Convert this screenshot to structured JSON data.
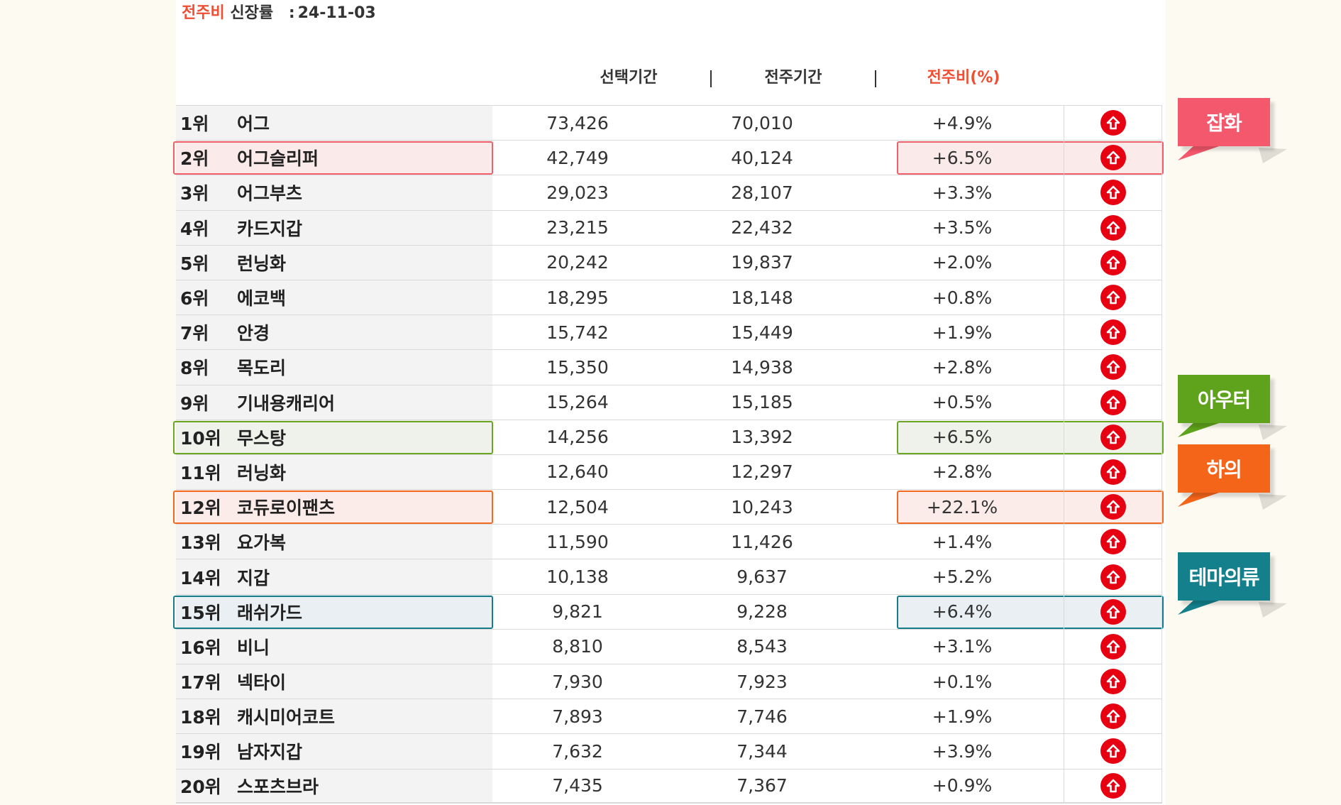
{
  "heading": {
    "highlight": "전주비",
    "label": "신장률",
    "separator": ":",
    "date": "24-11-03"
  },
  "columns": {
    "selected": "선택기간",
    "previous": "전주기간",
    "change": "전주비(%)"
  },
  "rows": [
    {
      "rank": "1위",
      "keyword": "어그",
      "selected": "73,426",
      "previous": "70,010",
      "change": "+4.9%",
      "trend": "up"
    },
    {
      "rank": "2위",
      "keyword": "어그슬리퍼",
      "selected": "42,749",
      "previous": "40,124",
      "change": "+6.5%",
      "trend": "up",
      "highlight": "잡화"
    },
    {
      "rank": "3위",
      "keyword": "어그부츠",
      "selected": "29,023",
      "previous": "28,107",
      "change": "+3.3%",
      "trend": "up"
    },
    {
      "rank": "4위",
      "keyword": "카드지갑",
      "selected": "23,215",
      "previous": "22,432",
      "change": "+3.5%",
      "trend": "up"
    },
    {
      "rank": "5위",
      "keyword": "런닝화",
      "selected": "20,242",
      "previous": "19,837",
      "change": "+2.0%",
      "trend": "up"
    },
    {
      "rank": "6위",
      "keyword": "에코백",
      "selected": "18,295",
      "previous": "18,148",
      "change": "+0.8%",
      "trend": "up"
    },
    {
      "rank": "7위",
      "keyword": "안경",
      "selected": "15,742",
      "previous": "15,449",
      "change": "+1.9%",
      "trend": "up"
    },
    {
      "rank": "8위",
      "keyword": "목도리",
      "selected": "15,350",
      "previous": "14,938",
      "change": "+2.8%",
      "trend": "up"
    },
    {
      "rank": "9위",
      "keyword": "기내용캐리어",
      "selected": "15,264",
      "previous": "15,185",
      "change": "+0.5%",
      "trend": "up"
    },
    {
      "rank": "10위",
      "keyword": "무스탕",
      "selected": "14,256",
      "previous": "13,392",
      "change": "+6.5%",
      "trend": "up",
      "highlight": "아우터"
    },
    {
      "rank": "11위",
      "keyword": "러닝화",
      "selected": "12,640",
      "previous": "12,297",
      "change": "+2.8%",
      "trend": "up"
    },
    {
      "rank": "12위",
      "keyword": "코듀로이팬츠",
      "selected": "12,504",
      "previous": "10,243",
      "change": "+22.1%",
      "trend": "up",
      "highlight": "하의"
    },
    {
      "rank": "13위",
      "keyword": "요가복",
      "selected": "11,590",
      "previous": "11,426",
      "change": "+1.4%",
      "trend": "up"
    },
    {
      "rank": "14위",
      "keyword": "지갑",
      "selected": "10,138",
      "previous": "9,637",
      "change": "+5.2%",
      "trend": "up"
    },
    {
      "rank": "15위",
      "keyword": "래쉬가드",
      "selected": "9,821",
      "previous": "9,228",
      "change": "+6.4%",
      "trend": "up",
      "highlight": "테마의류"
    },
    {
      "rank": "16위",
      "keyword": "비니",
      "selected": "8,810",
      "previous": "8,543",
      "change": "+3.1%",
      "trend": "up"
    },
    {
      "rank": "17위",
      "keyword": "넥타이",
      "selected": "7,930",
      "previous": "7,923",
      "change": "+0.1%",
      "trend": "up"
    },
    {
      "rank": "18위",
      "keyword": "캐시미어코트",
      "selected": "7,893",
      "previous": "7,746",
      "change": "+1.9%",
      "trend": "up"
    },
    {
      "rank": "19위",
      "keyword": "남자지갑",
      "selected": "7,632",
      "previous": "7,344",
      "change": "+3.9%",
      "trend": "up"
    },
    {
      "rank": "20위",
      "keyword": "스포츠브라",
      "selected": "7,435",
      "previous": "7,367",
      "change": "+0.9%",
      "trend": "up"
    }
  ],
  "badges": [
    {
      "label": "잡화",
      "row": 1,
      "color": "#f4586c",
      "border_color": "#f0606a",
      "fill": "#fbeaea"
    },
    {
      "label": "아우터",
      "row": 9,
      "color": "#5fa31c",
      "border_color": "#6aa622",
      "fill": "#eef2ea"
    },
    {
      "label": "하의",
      "row": 11,
      "color": "#f56519",
      "border_color": "#f26a22",
      "fill": "#fbecea"
    },
    {
      "label": "테마의류",
      "row": 14,
      "color": "#13808c",
      "border_color": "#167c8a",
      "fill": "#e9eff2"
    }
  ],
  "icons": {
    "trend_up": "arrow-up-circle-icon"
  }
}
